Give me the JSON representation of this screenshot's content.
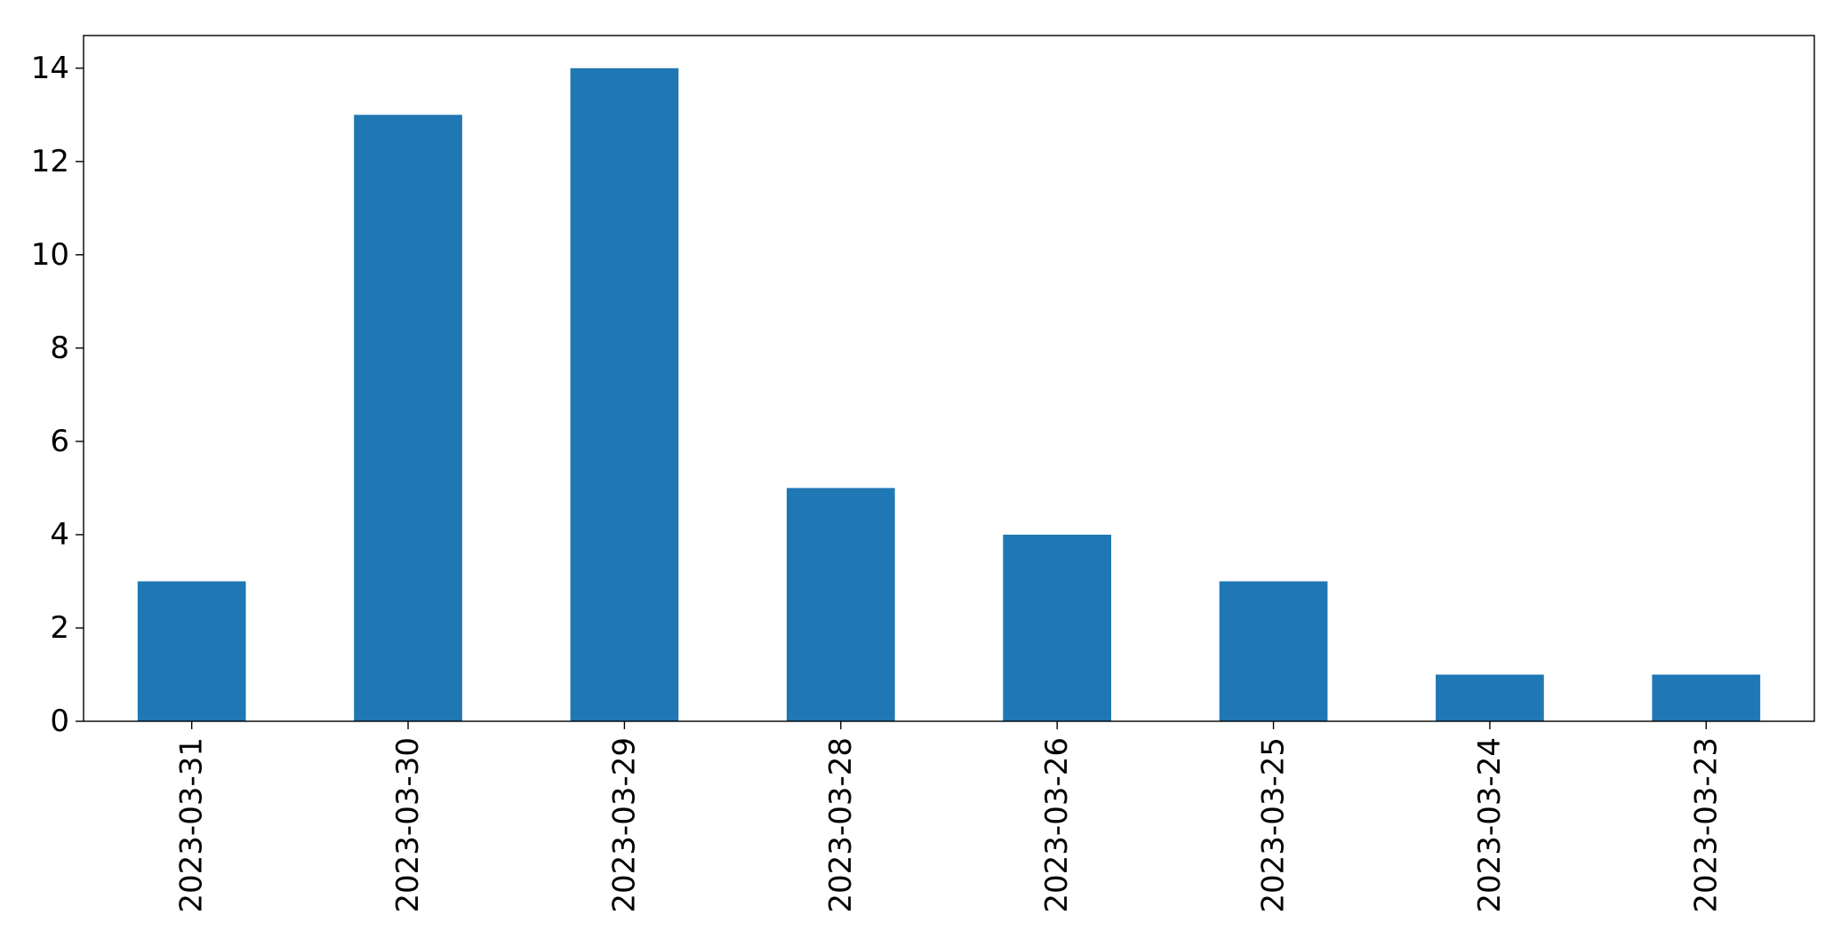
{
  "chart_data": {
    "type": "bar",
    "title": "",
    "xlabel": "",
    "ylabel": "",
    "categories": [
      "2023-03-31",
      "2023-03-30",
      "2023-03-29",
      "2023-03-28",
      "2023-03-26",
      "2023-03-25",
      "2023-03-24",
      "2023-03-23"
    ],
    "values": [
      3,
      13,
      14,
      5,
      4,
      3,
      1,
      1
    ],
    "ylim": [
      0,
      14.7
    ],
    "yticks": [
      0,
      2,
      4,
      6,
      8,
      10,
      12,
      14
    ],
    "grid": false,
    "legend": "none",
    "bar_color": "#1f77b4"
  }
}
